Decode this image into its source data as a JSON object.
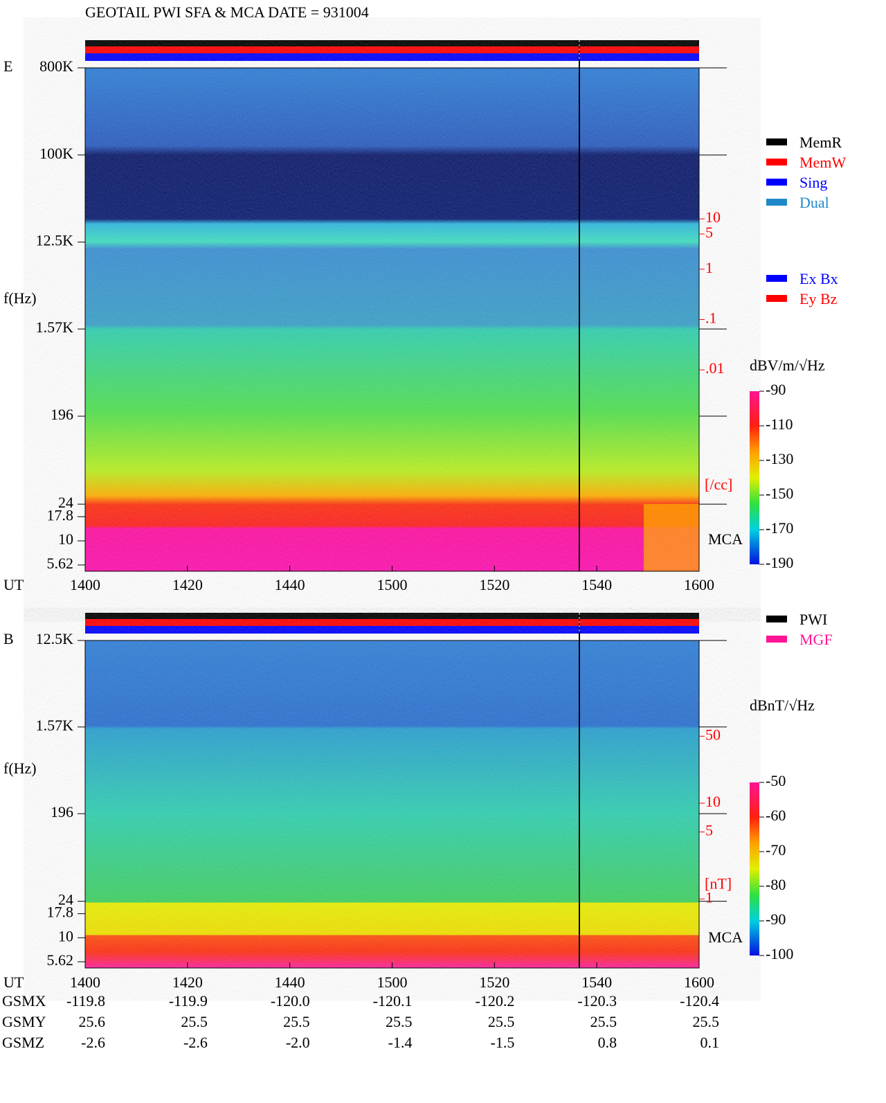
{
  "title": "GEOTAIL  PWI SFA & MCA   DATE = 931004",
  "chart_data": [
    {
      "type": "spectrogram",
      "panel": "E",
      "y_label": "f(Hz)",
      "x_label": "UT",
      "mca_label": "MCA",
      "log_y": true,
      "ylim": [
        4.84,
        800000
      ],
      "yticks": [
        {
          "value": 800000,
          "label": "800K"
        },
        {
          "value": 100000,
          "label": "100K"
        },
        {
          "value": 12500,
          "label": "12.5K"
        },
        {
          "value": 1570,
          "label": "1.57K"
        },
        196,
        24,
        17.8,
        10,
        5.62
      ],
      "x_labels": [
        "1400",
        "1420",
        "1440",
        "1500",
        "1520",
        "1540",
        "1600"
      ],
      "y2lim": [
        1e-06,
        10000
      ],
      "y2ticks": [
        10,
        5,
        1,
        {
          "value": 0.1,
          "label": ".1"
        },
        {
          "value": 0.01,
          "label": ".01"
        }
      ],
      "y2_label": "[/cc]",
      "y2_color": "#ff0000",
      "colorbar": {
        "label": "dBV/m/√Hz",
        "clim": [
          -190,
          -90
        ],
        "ticks": [
          -90,
          -110,
          -130,
          -150,
          -170,
          -190
        ]
      },
      "legend": [
        {
          "name": "MemR",
          "color": "#000000"
        },
        {
          "name": "MemW",
          "color": "#ff0000"
        },
        {
          "name": "Sing",
          "color": "#0000ff"
        },
        {
          "name": "Dual",
          "color": "#1e88c8"
        }
      ],
      "legend2": [
        {
          "name": "Ex Bx",
          "color": "#0000ff"
        },
        {
          "name": "Ey Bz",
          "color": "#ff0000"
        }
      ]
    },
    {
      "type": "spectrogram",
      "panel": "B",
      "y_label": "f(Hz)",
      "x_label": "UT",
      "mca_label": "MCA",
      "log_y": true,
      "ylim": [
        4.84,
        12500
      ],
      "yticks": [
        {
          "value": 12500,
          "label": "12.5K"
        },
        {
          "value": 1570,
          "label": "1.57K"
        },
        196,
        24,
        17.8,
        10,
        5.62
      ],
      "x_labels": [
        "1400",
        "1420",
        "1440",
        "1500",
        "1520",
        "1540",
        "1600"
      ],
      "y2lim": [
        0.19,
        500
      ],
      "y2ticks": [
        50,
        10,
        5,
        1
      ],
      "y2_label": "[nT]",
      "y2_color": "#ff0000",
      "colorbar": {
        "label": "dBnT/√Hz",
        "clim": [
          -100,
          -50
        ],
        "ticks": [
          -50,
          -60,
          -70,
          -80,
          -90,
          -100
        ]
      },
      "legend": [
        {
          "name": "PWI",
          "color": "#000000"
        },
        {
          "name": "MGF",
          "color": "#ff1493"
        }
      ]
    }
  ],
  "orbit": {
    "labels": [
      "GSMX",
      "GSMY",
      "GSMZ"
    ],
    "rows": [
      [
        "-119.8",
        "-119.9",
        "-120.0",
        "-120.1",
        "-120.2",
        "-120.3",
        "-120.4"
      ],
      [
        "25.6",
        "25.5",
        "25.5",
        "25.5",
        "25.5",
        "25.5",
        "25.5"
      ],
      [
        "-2.6",
        "-2.6",
        "-2.0",
        "-1.4",
        "-1.5",
        "0.8",
        "0.1"
      ]
    ]
  }
}
